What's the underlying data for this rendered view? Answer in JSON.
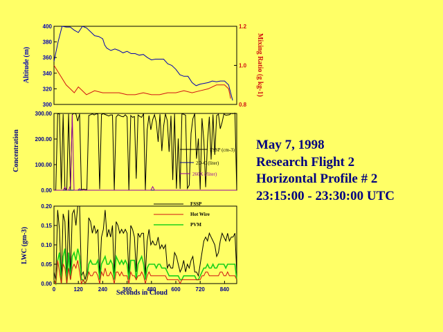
{
  "caption": {
    "line1": "May 7, 1998",
    "line2": "Research Flight 2",
    "line3": "Horizontal Profile # 2",
    "line4": "23:15:00 - 23:30:00 UTC"
  },
  "colors": {
    "background": "#ffff66",
    "altitude": "#0000b0",
    "mixing_ratio": "#d01010",
    "fssp": "#000000",
    "twodc": "#000090",
    "twodx": "#9000a0",
    "hotwire": "#d01010",
    "pvm": "#18d018",
    "caption": "#000080"
  },
  "chart_data": [
    {
      "type": "line",
      "ylabel": "Altitude (m)",
      "y2label": "Mixing Ratio (g kg-1)",
      "ylim": [
        300,
        400
      ],
      "yticks": [
        "300",
        "320",
        "340",
        "360",
        "380",
        "400"
      ],
      "y2lim": [
        0.8,
        1.2
      ],
      "y2ticks": [
        "0.8",
        "1.0",
        "1.2"
      ],
      "xlim": [
        0,
        900
      ],
      "series": [
        {
          "role": "altitude",
          "axis": "left",
          "points": [
            [
              0,
              355
            ],
            [
              20,
              380
            ],
            [
              40,
              400
            ],
            [
              60,
              399
            ],
            [
              80,
              399
            ],
            [
              100,
              395
            ],
            [
              120,
              392
            ],
            [
              140,
              400
            ],
            [
              160,
              398
            ],
            [
              180,
              393
            ],
            [
              200,
              388
            ],
            [
              220,
              387
            ],
            [
              240,
              384
            ],
            [
              250,
              376
            ],
            [
              260,
              372
            ],
            [
              280,
              369
            ],
            [
              300,
              371
            ],
            [
              320,
              369
            ],
            [
              340,
              366
            ],
            [
              360,
              368
            ],
            [
              380,
              365
            ],
            [
              400,
              365
            ],
            [
              420,
              363
            ],
            [
              440,
              364
            ],
            [
              460,
              360
            ],
            [
              480,
              357
            ],
            [
              500,
              358
            ],
            [
              520,
              358
            ],
            [
              540,
              358
            ],
            [
              560,
              352
            ],
            [
              580,
              350
            ],
            [
              600,
              345
            ],
            [
              620,
              338
            ],
            [
              640,
              336
            ],
            [
              660,
              336
            ],
            [
              680,
              328
            ],
            [
              700,
              324
            ],
            [
              720,
              326
            ],
            [
              740,
              327
            ],
            [
              760,
              328
            ],
            [
              780,
              330
            ],
            [
              800,
              329
            ],
            [
              820,
              330
            ],
            [
              840,
              330
            ],
            [
              860,
              325
            ],
            [
              870,
              315
            ],
            [
              880,
              305
            ]
          ]
        },
        {
          "role": "mixing_ratio",
          "axis": "right",
          "points": [
            [
              0,
              1.0
            ],
            [
              30,
              0.95
            ],
            [
              60,
              0.9
            ],
            [
              80,
              0.88
            ],
            [
              100,
              0.86
            ],
            [
              120,
              0.89
            ],
            [
              140,
              0.87
            ],
            [
              160,
              0.85
            ],
            [
              200,
              0.87
            ],
            [
              240,
              0.86
            ],
            [
              280,
              0.86
            ],
            [
              320,
              0.86
            ],
            [
              360,
              0.85
            ],
            [
              400,
              0.85
            ],
            [
              440,
              0.86
            ],
            [
              480,
              0.85
            ],
            [
              520,
              0.85
            ],
            [
              560,
              0.86
            ],
            [
              600,
              0.86
            ],
            [
              640,
              0.87
            ],
            [
              680,
              0.86
            ],
            [
              720,
              0.87
            ],
            [
              760,
              0.88
            ],
            [
              800,
              0.9
            ],
            [
              840,
              0.9
            ],
            [
              860,
              0.88
            ],
            [
              870,
              0.83
            ]
          ]
        }
      ]
    },
    {
      "type": "line",
      "ylabel": "Concentration",
      "ylim": [
        0,
        300
      ],
      "yticks": [
        "0.00",
        "100.00",
        "200.00",
        "300.00"
      ],
      "xlim": [
        0,
        900
      ],
      "legend_position": "right",
      "series": [
        {
          "name": "FSSP (cm-3)",
          "values": [
            0,
            1,
            299,
            298,
            4,
            297,
            4,
            3,
            298,
            2,
            296,
            300,
            298,
            270,
            298,
            2,
            4,
            3,
            2,
            292,
            295,
            298,
            294,
            298,
            298,
            4,
            296,
            299,
            296,
            293,
            290,
            294,
            294,
            0,
            286,
            295,
            292,
            288,
            287,
            295,
            287,
            0,
            292,
            285,
            288,
            45,
            294,
            288,
            285,
            299,
            1,
            236,
            292,
            236,
            276,
            295,
            265,
            189,
            297,
            153,
            250,
            298,
            272,
            150,
            291,
            40,
            298,
            6,
            202,
            5,
            298,
            297,
            293,
            7,
            20,
            222,
            279,
            299,
            123,
            202,
            3,
            281,
            196,
            12,
            191,
            287,
            120,
            296,
            138,
            292,
            297,
            240,
            266,
            298,
            293,
            294,
            295,
            300,
            299,
            301,
            0
          ]
        },
        {
          "name": "2D-C (liter)",
          "values": [
            0,
            0,
            0,
            0,
            0,
            0,
            0,
            0,
            0,
            0,
            0,
            0,
            0,
            0,
            0,
            0,
            0,
            0,
            0,
            0,
            0,
            0,
            0,
            0,
            0,
            0,
            0,
            0,
            0,
            0,
            0,
            0,
            0,
            0,
            0,
            0,
            0,
            0,
            0,
            0,
            0,
            0,
            0,
            0,
            0,
            0,
            0,
            0,
            0,
            0,
            0,
            0,
            0,
            0,
            0,
            0,
            0,
            0,
            0,
            0,
            0,
            0,
            0,
            0,
            0,
            0,
            0,
            0,
            0,
            0,
            0,
            0,
            0,
            0,
            0,
            0,
            0,
            0,
            0,
            0,
            0,
            0,
            0,
            0,
            0,
            0,
            0,
            0,
            0,
            0,
            0,
            0,
            0,
            0,
            0,
            0,
            0,
            0,
            0,
            0,
            0
          ]
        },
        {
          "name": "260X (/liter)",
          "values": [
            0,
            0,
            0,
            0,
            0,
            0,
            12,
            0,
            0,
            18,
            295,
            0,
            0,
            0,
            6,
            0,
            0,
            0,
            0,
            0,
            0,
            0,
            0,
            0,
            0,
            0,
            0,
            0,
            0,
            0,
            0,
            0,
            0,
            0,
            0,
            0,
            0,
            0,
            0,
            0,
            0,
            0,
            0,
            0,
            0,
            0,
            0,
            0,
            0,
            0,
            0,
            0,
            0,
            0,
            14,
            0,
            0,
            0,
            0,
            0,
            0,
            0,
            0,
            0,
            0,
            0,
            0,
            0,
            0,
            0,
            0,
            0,
            0,
            0,
            0,
            0,
            0,
            0,
            0,
            0,
            0,
            0,
            0,
            0,
            0,
            0,
            0,
            0,
            0,
            0,
            0,
            0,
            0,
            0,
            0,
            0,
            0,
            0,
            0,
            0,
            0
          ]
        }
      ]
    },
    {
      "type": "line",
      "xlabel": "Seconds in Cloud",
      "ylabel": "LWC (gm-3)",
      "ylim": [
        0,
        0.2
      ],
      "yticks": [
        "0.00",
        "0.05",
        "0.10",
        "0.15",
        "0.20"
      ],
      "xlim": [
        0,
        900
      ],
      "xticks": [
        "0",
        "120",
        "240",
        "360",
        "480",
        "600",
        "720",
        "840"
      ],
      "legend_position": "top-center",
      "series": [
        {
          "name": "FSSP",
          "values": [
            0.03,
            0.01,
            0.19,
            0.14,
            0.01,
            0.18,
            0.16,
            0.01,
            0.19,
            0.02,
            0.18,
            0.19,
            0.15,
            0.2,
            0.2,
            0.02,
            0.03,
            0.01,
            0.03,
            0.17,
            0.16,
            0.13,
            0.15,
            0.13,
            0.14,
            0.02,
            0.12,
            0.14,
            0.19,
            0.12,
            0.14,
            0.12,
            0.15,
            0.02,
            0.16,
            0.15,
            0.13,
            0.14,
            0.13,
            0.14,
            0.13,
            0.02,
            0.15,
            0.14,
            0.12,
            0.03,
            0.13,
            0.12,
            0.13,
            0.13,
            0.02,
            0.11,
            0.14,
            0.1,
            0.11,
            0.1,
            0.1,
            0.12,
            0.09,
            0.1,
            0.09,
            0.1,
            0.04,
            0.05,
            0.04,
            0.04,
            0.08,
            0.07,
            0.05,
            0.03,
            0.04,
            0.06,
            0.03,
            0.05,
            0.04,
            0.06,
            0.07,
            0.03,
            0.03,
            0.02,
            0.05,
            0.08,
            0.11,
            0.12,
            0.11,
            0.13,
            0.12,
            0.11,
            0.1,
            0.07,
            0.08,
            0.11,
            0.13,
            0.12,
            0.11,
            0.13,
            0.11,
            0.12,
            0.12,
            0.13,
            0.03
          ]
        },
        {
          "name": "Hot Wire",
          "values": [
            0.01,
            0,
            0.06,
            0.03,
            0,
            0.05,
            0.04,
            0,
            0.04,
            0.01,
            0.04,
            0.05,
            0.04,
            0.06,
            0.03,
            0,
            0.01,
            0,
            0.01,
            0.03,
            0.02,
            0.02,
            0.03,
            0.03,
            0.02,
            0,
            0.03,
            0.02,
            0.04,
            0.02,
            0.02,
            0.03,
            0.02,
            0,
            0.03,
            0.03,
            0.02,
            0.03,
            0.02,
            0.02,
            0.02,
            0,
            0.03,
            0.02,
            0.02,
            0.01,
            0.02,
            0.02,
            0.03,
            0.02,
            0,
            0.02,
            0.03,
            0.02,
            0.02,
            0.02,
            0.02,
            0.02,
            0.02,
            0.02,
            0.02,
            0.02,
            0.01,
            0.01,
            0.01,
            0.01,
            0.01,
            0.01,
            0.01,
            0,
            0.01,
            0.01,
            0.01,
            0.01,
            0.01,
            0.01,
            0.01,
            0.01,
            0.01,
            0.01,
            0.01,
            0.02,
            0.02,
            0.03,
            0.03,
            0.02,
            0.02,
            0.02,
            0.02,
            0.02,
            0.02,
            0.03,
            0.03,
            0.02,
            0.02,
            0.03,
            0.02,
            0.02,
            0.02,
            0.02,
            0.01
          ]
        },
        {
          "name": "PVM",
          "values": [
            0.01,
            0,
            0.06,
            0.08,
            0,
            0.07,
            0.09,
            0,
            0.08,
            0.01,
            0.07,
            0.08,
            0.06,
            0.09,
            0.07,
            0.01,
            0.01,
            0,
            0.01,
            0.05,
            0.06,
            0.05,
            0.05,
            0.05,
            0.06,
            0.01,
            0.05,
            0.06,
            0.07,
            0.05,
            0.05,
            0.06,
            0.05,
            0.01,
            0.07,
            0.06,
            0.05,
            0.06,
            0.05,
            0.06,
            0.05,
            0.01,
            0.06,
            0.06,
            0.06,
            0.01,
            0.05,
            0.06,
            0.07,
            0.05,
            0.01,
            0.04,
            0.05,
            0.05,
            0.05,
            0.05,
            0.04,
            0.05,
            0.05,
            0.04,
            0.04,
            0.04,
            0.03,
            0.02,
            0.02,
            0.02,
            0.02,
            0.02,
            0.02,
            0.01,
            0.01,
            0.02,
            0.02,
            0.02,
            0.02,
            0.02,
            0.02,
            0.02,
            0.01,
            0.01,
            0.02,
            0.03,
            0.04,
            0.04,
            0.05,
            0.04,
            0.04,
            0.05,
            0.04,
            0.04,
            0.05,
            0.05,
            0.05,
            0.05,
            0.04,
            0.05,
            0.05,
            0.05,
            0.05,
            0.05,
            0.01
          ]
        }
      ]
    }
  ]
}
